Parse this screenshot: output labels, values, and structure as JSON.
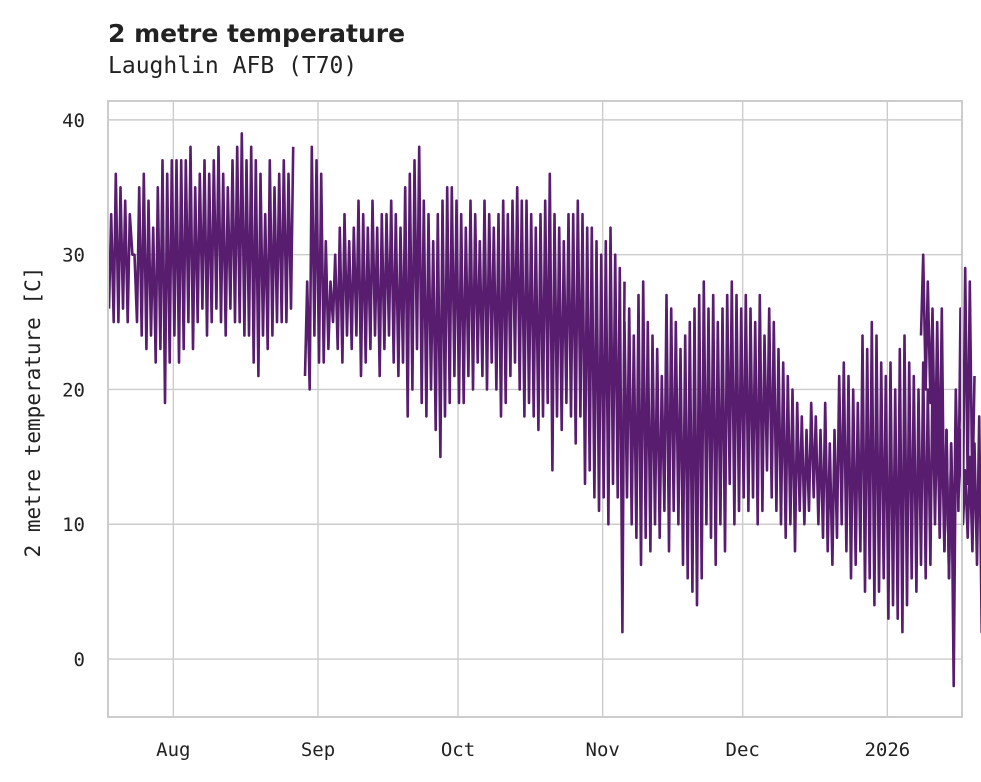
{
  "chart_data": {
    "type": "line",
    "title": "2 metre temperature",
    "subtitle": "Laughlin AFB (T70)",
    "xlabel": "",
    "ylabel": "2 metre temperature [C]",
    "ylim": [
      -4.3,
      41.4
    ],
    "xlim": [
      "2025-07-18",
      "2026-01-17"
    ],
    "grid": true,
    "x_ticks": [
      {
        "label": "Aug",
        "date": "2025-08-01"
      },
      {
        "label": "Sep",
        "date": "2025-09-01"
      },
      {
        "label": "Oct",
        "date": "2025-10-01"
      },
      {
        "label": "Nov",
        "date": "2025-11-01"
      },
      {
        "label": "Dec",
        "date": "2025-12-01"
      },
      {
        "label": "2026",
        "date": "2026-01-01"
      }
    ],
    "y_ticks": [
      {
        "label": "0",
        "value": 0
      },
      {
        "label": "10",
        "value": 10
      },
      {
        "label": "20",
        "value": 20
      },
      {
        "label": "30",
        "value": 30
      },
      {
        "label": "40",
        "value": 40
      }
    ],
    "series": [
      {
        "name": "2 metre temperature",
        "color": "#581d6e",
        "sampling": "daily minimum and maximum (estimated)",
        "segments": [
          {
            "start": "2025-07-18",
            "min": [
              26,
              25,
              25,
              26,
              25,
              30,
              25,
              24,
              23,
              24,
              22,
              23,
              19,
              22,
              24,
              22,
              23,
              25,
              23,
              25,
              26,
              24,
              25,
              26,
              25,
              24,
              26,
              25,
              25,
              24,
              24,
              22,
              21,
              24,
              23,
              24,
              25,
              25,
              25,
              26
            ],
            "max": [
              33,
              36,
              35,
              34,
              33,
              30,
              35,
              36,
              34,
              32,
              35,
              37,
              36,
              37,
              37,
              37,
              37,
              38,
              35,
              36,
              37,
              36,
              37,
              38,
              36,
              35,
              37,
              38,
              39,
              37,
              38,
              37,
              36,
              33,
              37,
              35,
              36,
              37,
              36,
              38
            ]
          },
          {
            "start": "2025-08-29",
            "min": [
              21,
              20,
              24,
              22,
              22,
              23,
              25,
              23,
              22,
              24,
              23,
              24,
              21,
              22,
              23,
              24,
              21,
              23,
              24,
              22,
              21,
              22,
              18,
              20,
              23,
              19,
              18,
              20,
              17,
              15,
              18,
              19,
              21,
              19,
              19,
              21,
              20,
              22,
              21,
              20,
              22,
              20,
              18,
              19,
              21,
              22,
              20,
              18,
              19,
              18,
              17,
              18,
              19,
              14,
              18,
              17,
              19,
              18,
              16,
              18,
              13,
              14,
              12,
              11,
              12,
              10,
              13,
              12,
              2
            ],
            "max": [
              28,
              38,
              37,
              36,
              31,
              28,
              30,
              32,
              33,
              31,
              32,
              34,
              33,
              32,
              34,
              32,
              33,
              33,
              34,
              33,
              32,
              35,
              36,
              37,
              38,
              34,
              33,
              31,
              33,
              34,
              35,
              35,
              34,
              33,
              32,
              34,
              33,
              31,
              34,
              33,
              32,
              33,
              34,
              33,
              34,
              35,
              34,
              34,
              33,
              32,
              33,
              34,
              36,
              33,
              32,
              31,
              33,
              33,
              34,
              33,
              32,
              32,
              31,
              30,
              31,
              32,
              30,
              29,
              28
            ]
          },
          {
            "start": "2025-11-05",
            "min": [
              11,
              12,
              10,
              9,
              7,
              9,
              8,
              10,
              9,
              11,
              8,
              11,
              10,
              7,
              6,
              5,
              4,
              6,
              10,
              9,
              7,
              10,
              8,
              13,
              10,
              11,
              12,
              11,
              12,
              10,
              11,
              14,
              12,
              11,
              10,
              9,
              10,
              8,
              11,
              10,
              11,
              12,
              10,
              9,
              8,
              7,
              9,
              10,
              8,
              6,
              7,
              8,
              5,
              6,
              4,
              5,
              6,
              3,
              4,
              3,
              2,
              4,
              6,
              5,
              7,
              6,
              7,
              10,
              9,
              8,
              6,
              7,
              11,
              12,
              13,
              12
            ],
            "max": [
              25,
              26,
              24,
              27,
              28,
              25,
              24,
              23,
              21,
              27,
              26,
              25,
              23,
              24,
              25,
              26,
              27,
              28,
              26,
              27,
              25,
              26,
              27,
              28,
              27,
              26,
              27,
              26,
              25,
              27,
              24,
              26,
              25,
              23,
              22,
              21,
              20,
              19,
              18,
              17,
              19,
              18,
              17,
              19,
              16,
              17,
              21,
              22,
              21,
              20,
              19,
              24,
              23,
              25,
              24,
              22,
              21,
              22,
              20,
              23,
              24,
              22,
              21,
              20,
              22,
              20,
              21,
              19,
              18,
              17,
              16,
              20,
              26,
              29,
              28,
              21
            ]
          },
          {
            "start": "2026-01-08",
            "min": [
              24,
              20,
              19,
              14,
              13,
              8,
              6,
              -2,
              12,
              10,
              9,
              8,
              7,
              2,
              8,
              12
            ],
            "max": [
              30,
              28,
              26,
              25,
              26,
              17,
              16,
              16,
              17,
              14,
              15,
              16,
              18,
              17,
              25,
              26
            ]
          }
        ]
      }
    ]
  }
}
